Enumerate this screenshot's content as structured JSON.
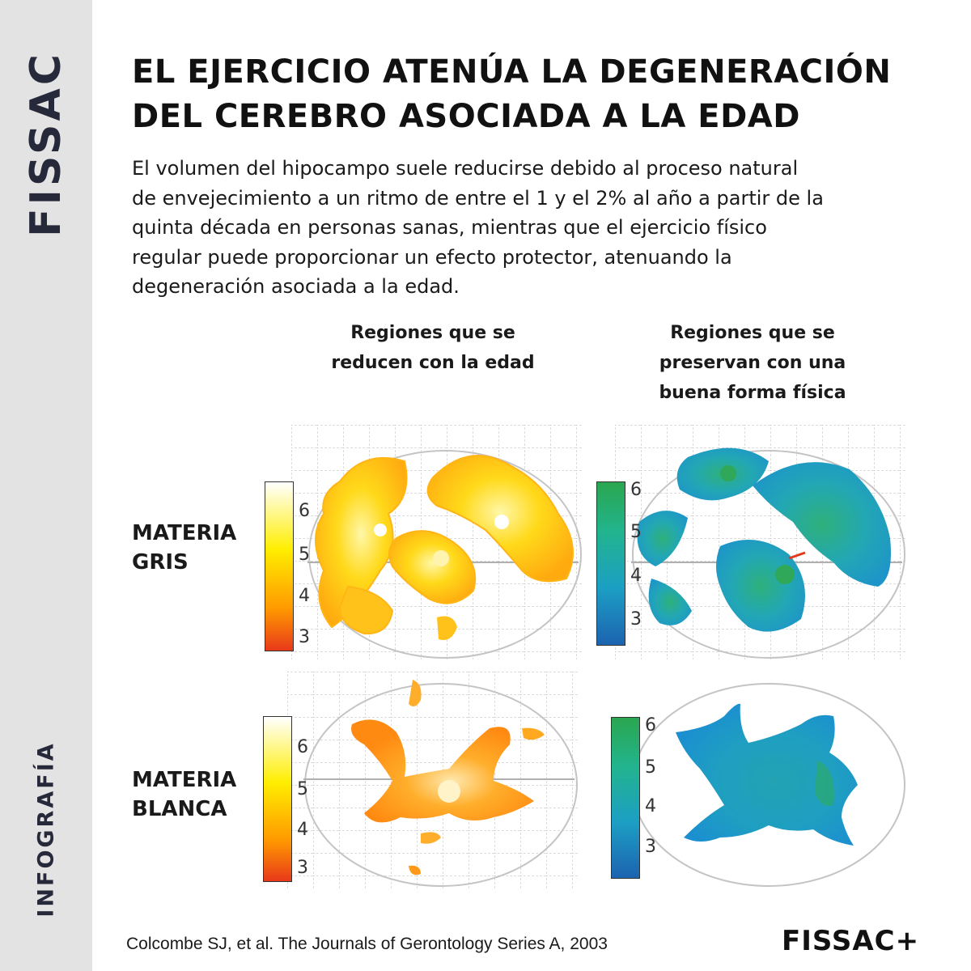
{
  "sidebar": {
    "brand": "FISSAC",
    "kicker": "INFOGRAFÍA"
  },
  "header": {
    "title_lines": [
      "EL EJERCICIO ATENÚA LA DEGENERACIÓN",
      "DEL CEREBRO ASOCIADA A LA EDAD"
    ]
  },
  "intro": {
    "lines": [
      "El volumen del hipocampo suele reducirse debido al proceso natural",
      "de envejecimiento a un ritmo de entre el 1 y el 2% al año a partir de la",
      "quinta década en personas sanas, mientras que el ejercicio físico",
      "regular puede proporcionar un efecto protector, atenuando la",
      "degeneración asociada a la edad."
    ]
  },
  "columns": [
    {
      "lines": [
        "Regiones que se",
        "reducen con la edad"
      ]
    },
    {
      "lines": [
        "Regiones que se",
        "preservan con una",
        "buena forma física"
      ]
    }
  ],
  "rows": [
    {
      "lines": [
        "MATERIA",
        "GRIS"
      ]
    },
    {
      "lines": [
        "MATERIA",
        "BLANCA"
      ]
    }
  ],
  "scale_ticks": [
    "6",
    "5",
    "4",
    "3"
  ],
  "colors": {
    "sidebar_bg": "#e3e3e3",
    "warm_scale": [
      "#ffffff",
      "#ffee00",
      "#ff9900",
      "#e8391a"
    ],
    "cool_scale": [
      "#2aa64f",
      "#22b48d",
      "#1c9fc4",
      "#1c63b0"
    ]
  },
  "footer": {
    "citation": "Colcombe SJ, et al. The Journals of Gerontology Series A, 2003",
    "logo": "FISSAC+"
  }
}
